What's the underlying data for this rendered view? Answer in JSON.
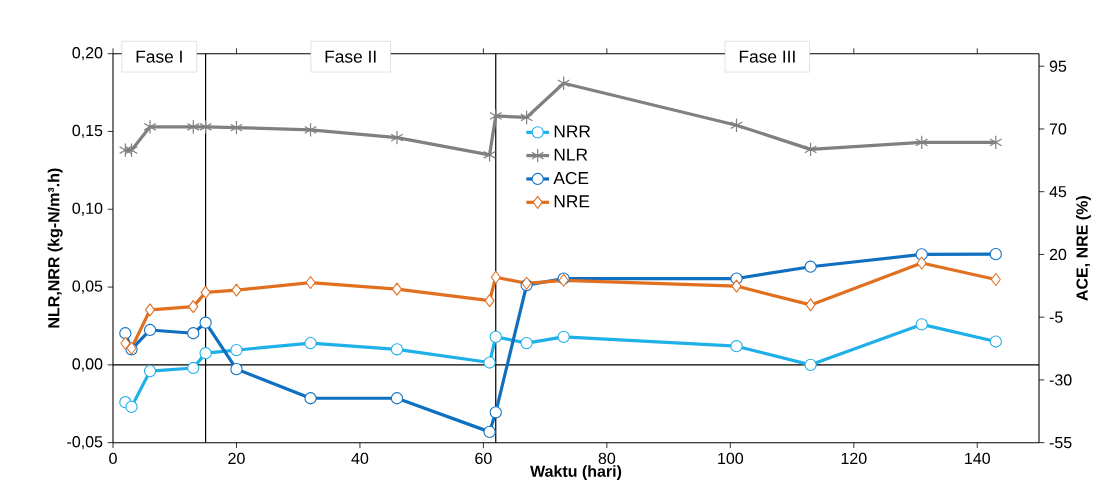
{
  "chart_data": {
    "type": "line",
    "xlabel": "Waktu (hari)",
    "ylabel": "NLR,NRR (kg-N/m³.h)",
    "y2label": "ACE, NRE (%)",
    "annotations": [
      "Fase I",
      "Fase II",
      "Fase III"
    ],
    "series": [
      {
        "name": "NRR",
        "color": "#1fb0e8",
        "marker": "circle",
        "x": [
          2,
          3,
          6,
          13,
          15,
          20,
          32,
          46,
          61,
          62,
          67,
          73,
          101,
          113,
          131,
          143
        ],
        "values": [
          -0.024,
          -0.027,
          -0.004,
          -0.002,
          0.0075,
          0.0095,
          0.014,
          0.01,
          0.0015,
          0.018,
          0.014,
          0.018,
          0.012,
          0.0,
          0.026,
          0.015
        ]
      },
      {
        "name": "NLR",
        "color": "#808080",
        "marker": "cross",
        "x": [
          2,
          3,
          6,
          13,
          15,
          20,
          32,
          46,
          61,
          62,
          67,
          73,
          101,
          113,
          131,
          143
        ],
        "values": [
          0.138,
          0.138,
          0.153,
          0.153,
          0.153,
          0.1525,
          0.151,
          0.146,
          0.135,
          0.16,
          0.159,
          0.181,
          0.154,
          0.1385,
          0.143,
          0.143
        ]
      },
      {
        "name": "ACE",
        "color": "#0f6fc0",
        "marker": "circle",
        "axis": "y2",
        "x": [
          2,
          3,
          6,
          13,
          15,
          20,
          32,
          46,
          61,
          62,
          67,
          73,
          101,
          113,
          131,
          143
        ],
        "values": [
          -11.4,
          -17.8,
          -10.1,
          -11.4,
          -7.2,
          -25.7,
          -37.3,
          -37.3,
          -50.7,
          -42.9,
          7.8,
          10.4,
          10.4,
          15.1,
          20.0,
          20.1
        ]
      },
      {
        "name": "NRE",
        "color": "#e07020",
        "marker": "diamond",
        "axis": "y2",
        "x": [
          2,
          3,
          6,
          13,
          15,
          20,
          32,
          46,
          61,
          62,
          67,
          73,
          101,
          113,
          131,
          143
        ],
        "values": [
          -15.4,
          -17.4,
          -2.1,
          -0.8,
          4.9,
          5.8,
          8.8,
          6.2,
          1.6,
          10.9,
          8.5,
          9.7,
          7.4,
          -0.1,
          16.6,
          10.0
        ]
      }
    ],
    "xlim": [
      0,
      150
    ],
    "xticks": [
      0,
      20,
      40,
      60,
      80,
      100,
      120,
      140
    ],
    "ylim": [
      -0.05,
      0.2
    ],
    "yticks": [
      {
        "value": -0.05,
        "label": "-0,05"
      },
      {
        "value": 0,
        "label": "0,00"
      },
      {
        "value": 0.05,
        "label": "0,05"
      },
      {
        "value": 0.1,
        "label": "0,10"
      },
      {
        "value": 0.15,
        "label": "0,15"
      },
      {
        "value": 0.2,
        "label": "0,20"
      }
    ],
    "y2lim": [
      -55,
      100
    ],
    "y2ticks": [
      -55,
      -30,
      -5,
      20,
      45,
      70,
      95
    ],
    "ref_lines": [
      {
        "axis": "x",
        "value": 15,
        "color": "#000000"
      },
      {
        "axis": "x",
        "value": 62,
        "color": "#000000"
      },
      {
        "axis": "y",
        "value": 0,
        "color": "#000000"
      }
    ],
    "legend": "top",
    "grid": false,
    "line_style": "solid"
  }
}
